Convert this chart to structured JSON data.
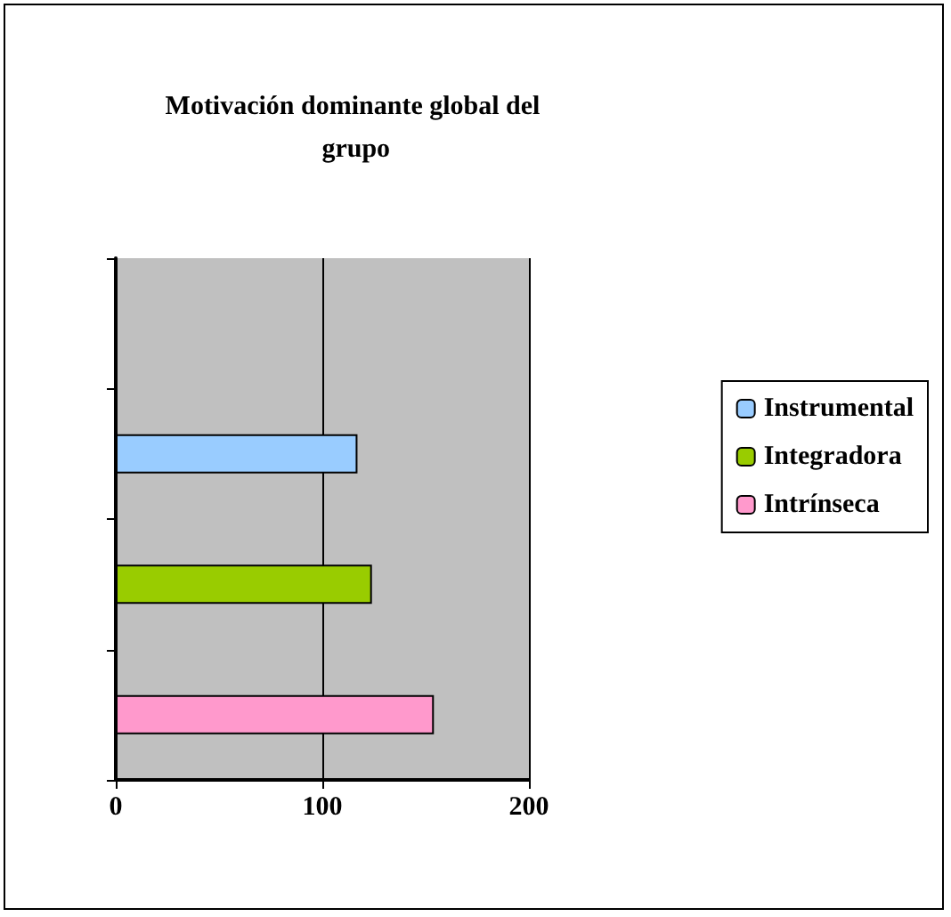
{
  "chart_data": {
    "type": "bar",
    "orientation": "horizontal",
    "title": "Motivación dominante global del grupo",
    "categories": [
      null,
      null,
      null,
      null
    ],
    "series": [
      {
        "name": "Instrumental",
        "color": "#99ccff",
        "values": [
          null,
          117,
          null,
          null
        ]
      },
      {
        "name": "Integradora",
        "color": "#99cc00",
        "values": [
          null,
          null,
          124,
          null
        ]
      },
      {
        "name": "Intrínseca",
        "color": "#ff99cc",
        "values": [
          null,
          null,
          null,
          154
        ]
      }
    ],
    "xlim": [
      0,
      200
    ],
    "xticks": [
      0,
      100,
      200
    ],
    "grid": "x",
    "legend": "right"
  }
}
